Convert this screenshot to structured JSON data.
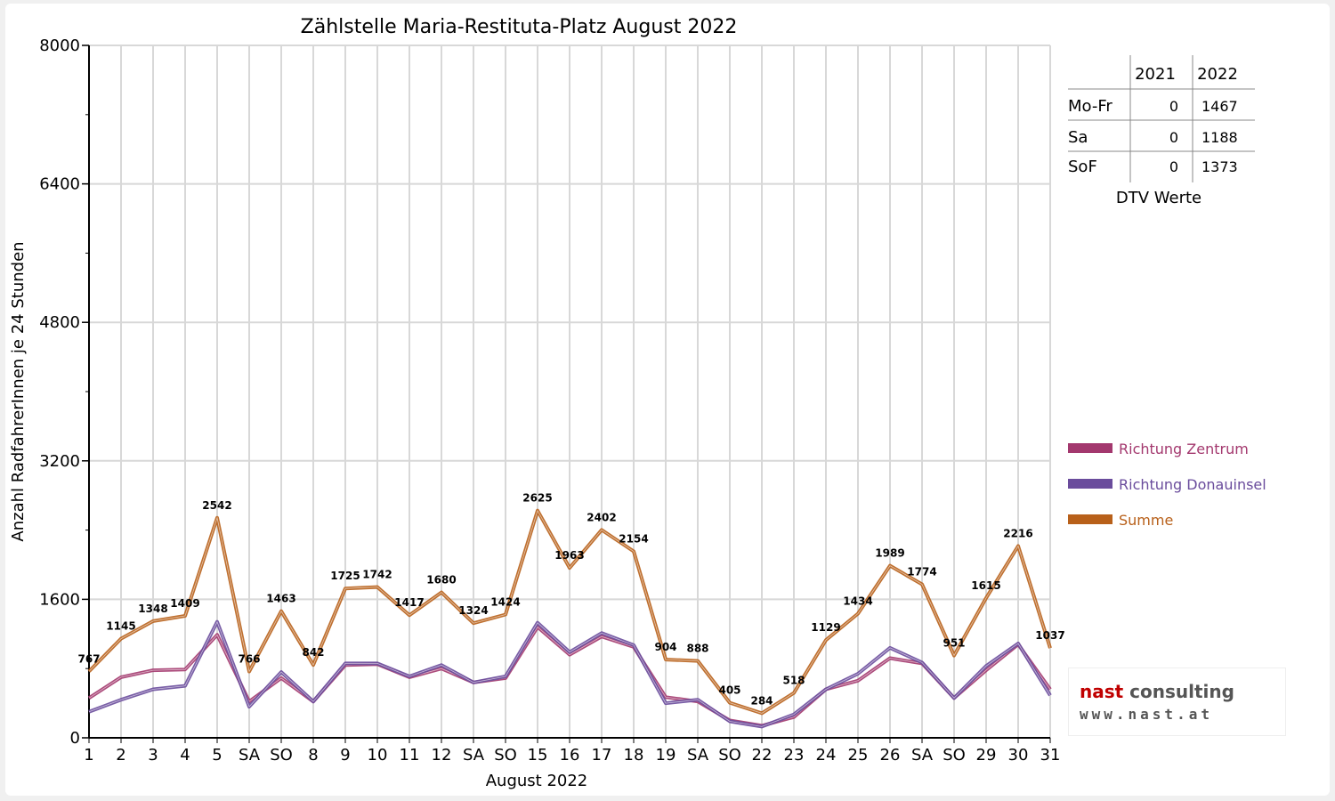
{
  "chart_data": {
    "type": "line",
    "title": "Zählstelle Maria-Restituta-Platz August 2022",
    "xlabel": "August 2022",
    "ylabel": "Anzahl RadfahrerInnen je 24 Stunden",
    "ylim": [
      0,
      8000
    ],
    "yticks": [
      "0",
      "1600",
      "3200",
      "4800",
      "6400",
      "8000"
    ],
    "categories": [
      "1",
      "2",
      "3",
      "4",
      "5",
      "SA",
      "SO",
      "8",
      "9",
      "10",
      "11",
      "12",
      "SA",
      "SO",
      "15",
      "16",
      "17",
      "18",
      "19",
      "SA",
      "SO",
      "22",
      "23",
      "24",
      "25",
      "26",
      "SA",
      "SO",
      "29",
      "30",
      "31"
    ],
    "highlight_categories": [
      "SO",
      "SO",
      "15",
      "SO",
      "SO"
    ],
    "grid": true,
    "legend_position": "right",
    "series": [
      {
        "name": "Richtung Zentrum",
        "color": "#a3386e",
        "values": [
          460,
          700,
          780,
          790,
          1190,
          420,
          690,
          420,
          840,
          850,
          700,
          800,
          640,
          690,
          1280,
          960,
          1170,
          1050,
          470,
          420,
          200,
          140,
          240,
          560,
          660,
          920,
          860,
          460,
          780,
          1080,
          560
        ]
      },
      {
        "name": "Richtung Donauinsel",
        "color": "#6a4c9c",
        "values": [
          300,
          440,
          560,
          600,
          1340,
          360,
          760,
          420,
          860,
          860,
          710,
          840,
          640,
          710,
          1330,
          990,
          1210,
          1070,
          400,
          440,
          190,
          130,
          270,
          560,
          740,
          1040,
          870,
          460,
          830,
          1090,
          490
        ]
      },
      {
        "name": "Summe",
        "color": "#b8601a",
        "values": [
          767,
          1145,
          1348,
          1409,
          2542,
          766,
          1463,
          842,
          1725,
          1742,
          1417,
          1680,
          1324,
          1424,
          2625,
          1963,
          2402,
          2154,
          904,
          888,
          405,
          284,
          518,
          1129,
          1434,
          1989,
          1774,
          951,
          1615,
          2216,
          1037
        ]
      }
    ],
    "summe_labels": [
      "767",
      "1145",
      "1348",
      "1409",
      "2542",
      "766",
      "1463",
      "842",
      "1725",
      "1742",
      "1417",
      "1680",
      "1324",
      "1424",
      "2625",
      "1963",
      "2402",
      "2154",
      "904",
      "888",
      "405",
      "284",
      "518",
      "1129",
      "1434",
      "1989",
      "1774",
      "951",
      "1615",
      "2216",
      "1037"
    ]
  },
  "dtv_table": {
    "caption": "DTV Werte",
    "headers": [
      "",
      "2021",
      "2022"
    ],
    "rows": [
      {
        "label": "Mo-Fr",
        "v2021": "0",
        "v2022": "1467"
      },
      {
        "label": "Sa",
        "v2021": "0",
        "v2022": "1188"
      },
      {
        "label": "SoF",
        "v2021": "0",
        "v2022": "1373"
      }
    ]
  },
  "logo": {
    "name_part1": "nast",
    "name_part2": " consulting",
    "url": "www.nast.at"
  }
}
